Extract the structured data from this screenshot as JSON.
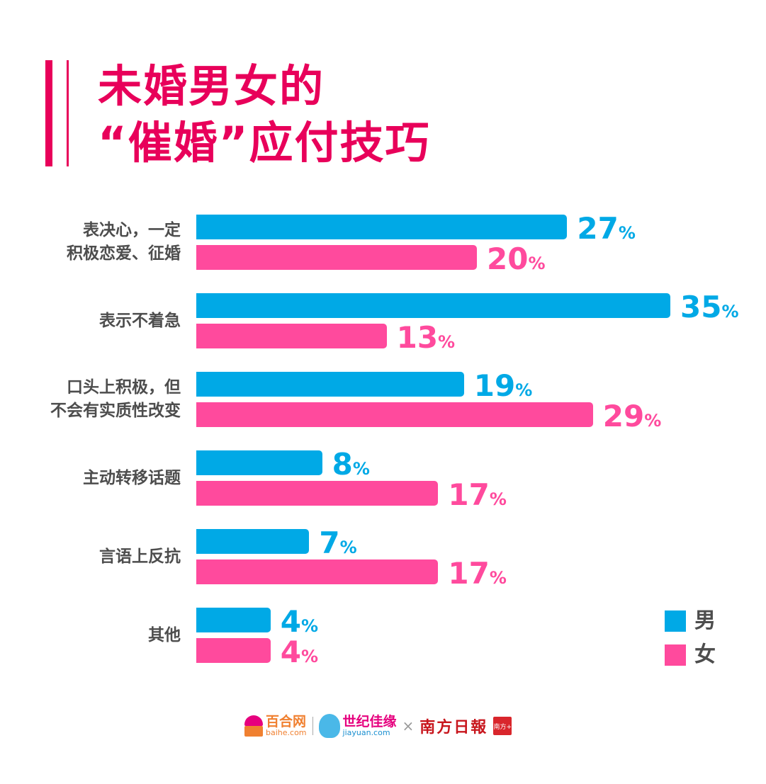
{
  "title": {
    "line1": "未婚男女的",
    "line2": "“催婚”应付技巧"
  },
  "chart_data": {
    "type": "bar",
    "orientation": "horizontal",
    "title": "未婚男女的“催婚”应付技巧",
    "categories": [
      "表决心，一定\n积极恋爱、征婚",
      "表示不着急",
      "口头上积极，但\n不会有实质性改变",
      "主动转移话题",
      "言语上反抗",
      "其他"
    ],
    "series": [
      {
        "name": "男",
        "color": "#00a9e6",
        "values": [
          27,
          35,
          19,
          8,
          7,
          4
        ]
      },
      {
        "name": "女",
        "color": "#ff4a9d",
        "values": [
          20,
          13,
          29,
          17,
          17,
          4
        ]
      }
    ],
    "unit": "%",
    "legend": "bottom-right",
    "grid": false
  },
  "footer": {
    "baihe_cn": "百合网",
    "baihe_en": "baihe.com",
    "jiayuan_cn": "世纪佳缘",
    "jiayuan_en": "jiayuan.com",
    "times": "×",
    "nanfang": "南方日報",
    "nanfang_plus": "南方+"
  }
}
